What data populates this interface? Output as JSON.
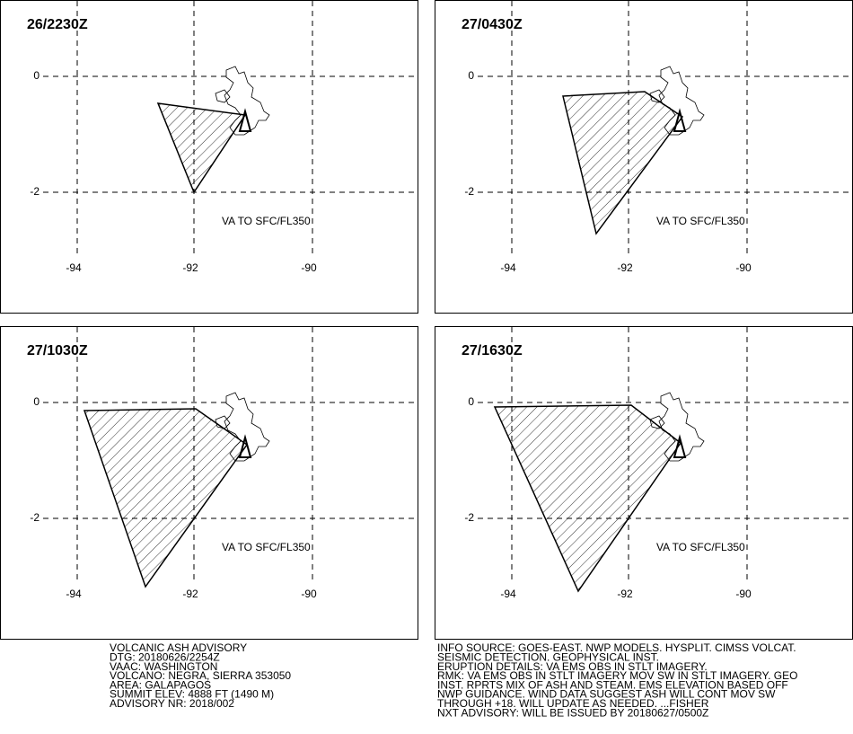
{
  "panels": [
    {
      "title": "26/2230Z",
      "lat_labels": [
        "0",
        "-2"
      ],
      "lon_labels": [
        "-94",
        "-92",
        "-90"
      ],
      "note": "VA TO SFC/FL350"
    },
    {
      "title": "27/0430Z",
      "lat_labels": [
        "0",
        "-2"
      ],
      "lon_labels": [
        "-94",
        "-92",
        "-90"
      ],
      "note": "VA TO SFC/FL350"
    },
    {
      "title": "27/1030Z",
      "lat_labels": [
        "0",
        "-2"
      ],
      "lon_labels": [
        "-94",
        "-92",
        "-90"
      ],
      "note": "VA TO SFC/FL350"
    },
    {
      "title": "27/1630Z",
      "lat_labels": [
        "0",
        "-2"
      ],
      "lon_labels": [
        "-94",
        "-92",
        "-90"
      ],
      "note": "VA TO SFC/FL350"
    }
  ],
  "advisory_left": [
    "VOLCANIC ASH ADVISORY",
    "DTG: 20180626/2254Z",
    "VAAC: WASHINGTON",
    "VOLCANO: NEGRA, SIERRA 353050",
    "AREA: GALAPAGOS",
    "SUMMIT ELEV: 4888 FT (1490 M)",
    "ADVISORY NR: 2018/002"
  ],
  "advisory_right": [
    "INFO SOURCE: GOES-EAST. NWP MODELS. HYSPLIT. CIMSS VOLCAT.",
    "SEISMIC DETECTION. GEOPHYSICAL INST.",
    "ERUPTION DETAILS: VA EMS OBS IN STLT IMAGERY.",
    "RMK: VA EMS OBS IN STLT IMAGERY MOV SW IN STLT IMAGERY. GEO",
    "INST. RPRTS MIX OF ASH AND STEAM. EMS ELEVATION BASED OFF",
    "NWP GUIDANCE. WIND DATA SUGGEST ASH WILL CONT MOV SW",
    "THROUGH +18. WILL UPDATE AS NEEDED. ...FISHER",
    "NXT ADVISORY: WILL BE ISSUED BY 20180627/0500Z"
  ]
}
